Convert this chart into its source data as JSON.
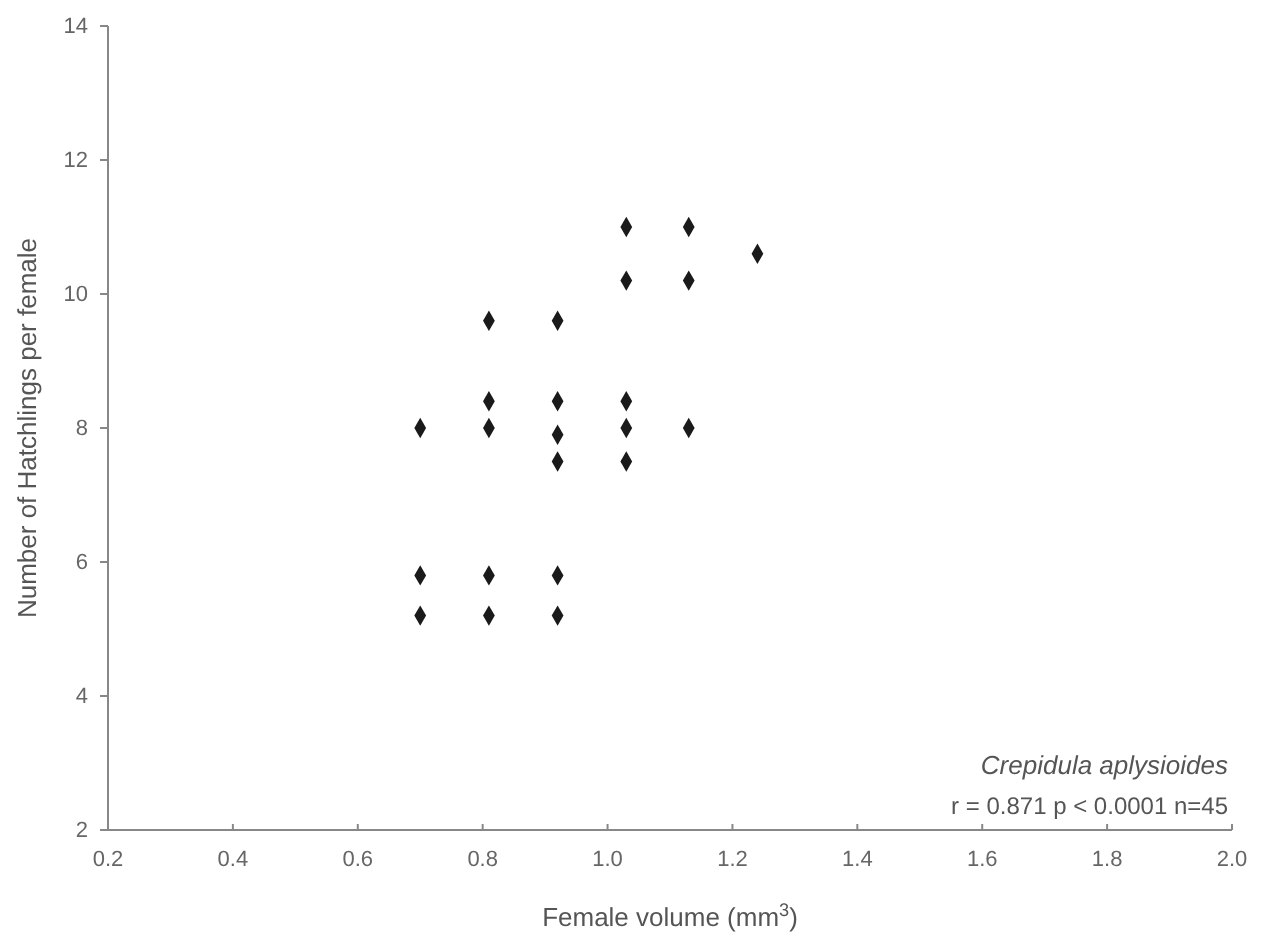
{
  "chart_data": {
    "type": "scatter",
    "xlabel": "Female volume (mm$^{3}$)",
    "ylabel": "Number of Hatchlings per female",
    "x": [
      0.7,
      0.7,
      0.7,
      0.81,
      0.81,
      0.81,
      0.81,
      0.81,
      0.92,
      0.92,
      0.92,
      0.92,
      0.92,
      0.92,
      1.03,
      1.03,
      1.03,
      1.03,
      1.03,
      1.13,
      1.13,
      1.13,
      1.24
    ],
    "series": [
      {
        "color": "#1a1a1a",
        "values": [
          8.0,
          5.8,
          5.2,
          9.6,
          8.4,
          8.0,
          5.8,
          5.2,
          9.6,
          8.4,
          7.9,
          7.5,
          5.8,
          5.2,
          11.0,
          10.2,
          8.4,
          8.0,
          7.5,
          11.0,
          10.2,
          8.0,
          10.6
        ]
      }
    ],
    "xlim": [
      0.2,
      2.0
    ],
    "xticks": [
      0.2,
      0.4,
      0.6,
      0.8,
      {
        "value": 1,
        "label": "1.0"
      },
      1.2,
      1.4,
      1.6,
      1.8,
      {
        "value": 2,
        "label": "2.0"
      }
    ],
    "ylim": [
      2,
      14
    ],
    "yticks": [
      2,
      4,
      6,
      8,
      10,
      12,
      14
    ],
    "marker": "diamond",
    "grid": false,
    "annotations": [
      "Crepidula aplysioides",
      "r = 0.871  p < 0.0001  n=45"
    ]
  }
}
